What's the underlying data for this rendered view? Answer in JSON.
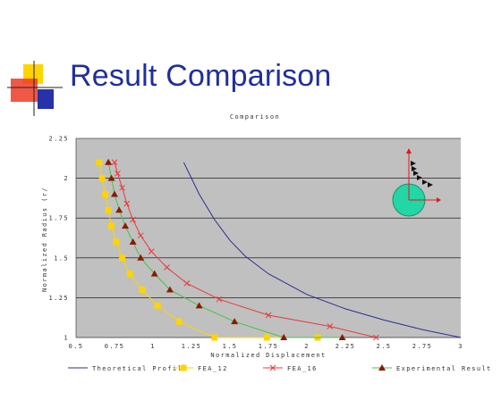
{
  "slide": {
    "title": "Result Comparison"
  },
  "colors": {
    "plot_bg": "#c0c0c0",
    "theoretical": "#2b2f8f",
    "fea12": "#ffd400",
    "fea16": "#e83a3a",
    "experimental": "#44c544",
    "exp_marker": "#8b1a00",
    "title_blue": "#1f2f9c"
  },
  "chart_data": {
    "type": "line",
    "title": "Comparison",
    "xlabel": "Normalized Displacement",
    "ylabel": "Normalized Radius (r/",
    "xlim": [
      0.5,
      3
    ],
    "ylim": [
      1,
      2.25
    ],
    "xticks": [
      "0.5",
      "0.75",
      "1",
      "1.25",
      "1.5",
      "1.75",
      "2",
      "2.25",
      "2.5",
      "2.75",
      "3"
    ],
    "yticks": [
      "1",
      "1.25",
      "1.5",
      "1.75",
      "2",
      "2.25"
    ],
    "grid": true,
    "legend_position": "bottom",
    "series": [
      {
        "name": "Theoretical Profile",
        "marker": "none",
        "color_key": "theoretical",
        "x": [
          1.2,
          1.25,
          1.3,
          1.4,
          1.5,
          1.6,
          1.75,
          2.0,
          2.25,
          2.5,
          2.75,
          3.0
        ],
        "y": [
          2.1,
          2.0,
          1.9,
          1.74,
          1.61,
          1.51,
          1.4,
          1.27,
          1.18,
          1.11,
          1.05,
          1.0
        ]
      },
      {
        "name": "FEA_12",
        "marker": "square",
        "color_key": "fea12",
        "x": [
          0.65,
          0.67,
          0.69,
          0.71,
          0.73,
          0.76,
          0.8,
          0.85,
          0.93,
          1.03,
          1.17,
          1.4,
          1.74,
          2.07
        ],
        "y": [
          2.1,
          2.0,
          1.9,
          1.8,
          1.7,
          1.6,
          1.5,
          1.4,
          1.3,
          1.2,
          1.1,
          1.0,
          1.0,
          1.0
        ]
      },
      {
        "name": "FEA_16",
        "marker": "x",
        "color_key": "fea16",
        "x": [
          0.75,
          0.77,
          0.8,
          0.83,
          0.87,
          0.92,
          0.99,
          1.09,
          1.22,
          1.43,
          1.75,
          2.15,
          2.45
        ],
        "y": [
          2.1,
          2.03,
          1.94,
          1.84,
          1.74,
          1.64,
          1.54,
          1.44,
          1.34,
          1.24,
          1.14,
          1.07,
          1.0
        ]
      },
      {
        "name": "Experimental Result",
        "marker": "triangle",
        "color_key": "experimental",
        "x": [
          0.71,
          0.73,
          0.75,
          0.78,
          0.82,
          0.87,
          0.92,
          1.01,
          1.11,
          1.3,
          1.53,
          1.85,
          2.23
        ],
        "y": [
          2.1,
          2.0,
          1.9,
          1.8,
          1.7,
          1.6,
          1.5,
          1.4,
          1.3,
          1.2,
          1.1,
          1.0,
          1.0
        ]
      }
    ]
  }
}
